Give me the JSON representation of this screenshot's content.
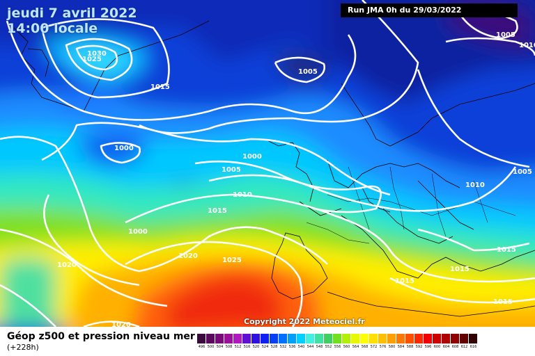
{
  "header": {
    "date_line1": "jeudi 7 avril 2022",
    "date_line2": "14:00 locale",
    "run": "Run JMA 0h du 29/03/2022"
  },
  "map": {
    "isobar_labels": [
      {
        "id": "l1",
        "text": "1030"
      },
      {
        "id": "l2",
        "text": "1025"
      },
      {
        "id": "l3",
        "text": "1015"
      },
      {
        "id": "l4",
        "text": "1005"
      },
      {
        "id": "l5",
        "text": "1000"
      },
      {
        "id": "l6",
        "text": "1000"
      },
      {
        "id": "l7",
        "text": "1005"
      },
      {
        "id": "l8",
        "text": "1010"
      },
      {
        "id": "l9",
        "text": "1015"
      },
      {
        "id": "l10",
        "text": "1000"
      },
      {
        "id": "l11",
        "text": "1020"
      },
      {
        "id": "l12",
        "text": "1020"
      },
      {
        "id": "l13",
        "text": "1025"
      },
      {
        "id": "l14",
        "text": "1020"
      },
      {
        "id": "l15",
        "text": "1015"
      },
      {
        "id": "l16",
        "text": "1015"
      },
      {
        "id": "l17",
        "text": "1015"
      },
      {
        "id": "l18",
        "text": "1015"
      },
      {
        "id": "l19",
        "text": "1010"
      },
      {
        "id": "l20",
        "text": "1005"
      },
      {
        "id": "l21",
        "text": "1005"
      },
      {
        "id": "l22",
        "text": "1010"
      }
    ],
    "copyright": "Copyright 2022 Meteociel.fr"
  },
  "footer": {
    "title": "Géop z500 et pression niveau mer",
    "subtitle": "(+228h)"
  },
  "legend": {
    "values": [
      "496",
      "500",
      "504",
      "508",
      "512",
      "516",
      "520",
      "524",
      "528",
      "532",
      "536",
      "540",
      "544",
      "548",
      "552",
      "556",
      "560",
      "564",
      "568",
      "572",
      "576",
      "580",
      "584",
      "588",
      "592",
      "596",
      "600",
      "604",
      "608",
      "612",
      "616"
    ],
    "colors": [
      "#3a0a3a",
      "#5a0a5a",
      "#7a0a7a",
      "#9a109a",
      "#b018c0",
      "#6010d0",
      "#3010e0",
      "#1020f0",
      "#0840f8",
      "#0070ff",
      "#00a0ff",
      "#00d0ff",
      "#40f0e0",
      "#40e0a0",
      "#40d060",
      "#70e020",
      "#b0f000",
      "#e8f800",
      "#ffff00",
      "#ffe000",
      "#ffc000",
      "#ffa000",
      "#ff7800",
      "#ff5000",
      "#ff2800",
      "#f00000",
      "#d00000",
      "#b00000",
      "#900000",
      "#600000",
      "#300000"
    ]
  }
}
